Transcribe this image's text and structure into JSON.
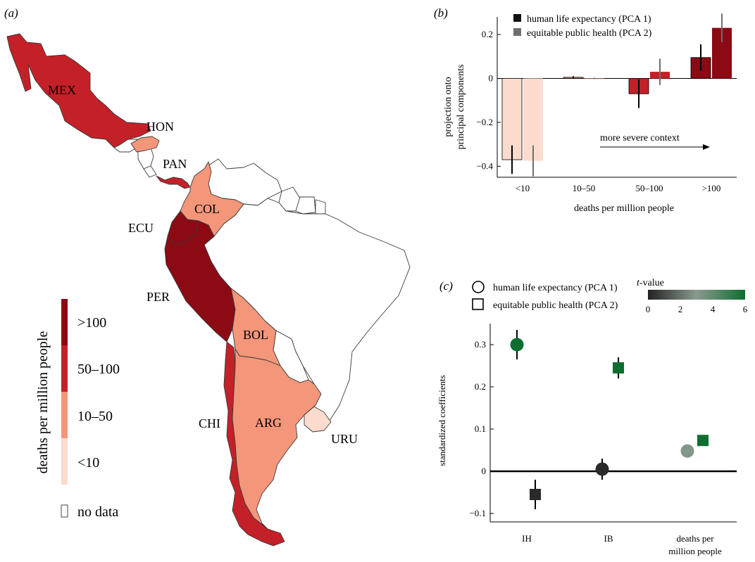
{
  "colors": {
    "gt100": "#8b0a14",
    "c50_100": "#c42028",
    "c10_50": "#f3967a",
    "lt10": "#fadbce",
    "nodata": "#ffffff",
    "tv_low": "#222222",
    "tv_high": "#0e6e32"
  },
  "map": {
    "panel_label": "(a)",
    "countries": [
      {
        "code": "MEX",
        "category": "50–100"
      },
      {
        "code": "HON",
        "category": "10–50"
      },
      {
        "code": "PAN",
        "category": "50–100"
      },
      {
        "code": "COL",
        "category": "10–50"
      },
      {
        "code": "ECU",
        "category": ">100"
      },
      {
        "code": "PER",
        "category": ">100"
      },
      {
        "code": "BOL",
        "category": "10–50"
      },
      {
        "code": "CHI",
        "category": "50–100"
      },
      {
        "code": "ARG",
        "category": "10–50"
      },
      {
        "code": "URU",
        "category": "<10"
      }
    ],
    "legend": {
      "title": "deaths per million people",
      "categories": [
        ">100",
        "50–100",
        "10–50",
        "<10"
      ],
      "nodata": "no data"
    }
  },
  "chart_data": [
    {
      "panel_label": "(b)",
      "type": "bar",
      "categories": [
        "<10",
        "10–50",
        "50–100",
        ">100"
      ],
      "series": [
        {
          "name": "human life expectancy (PCA 1)",
          "values": [
            -0.37,
            0.005,
            -0.07,
            0.095
          ],
          "err": [
            0.065,
            0.005,
            0.065,
            0.06
          ]
        },
        {
          "name": "equitable public health (PCA 2)",
          "values": [
            -0.375,
            0.0,
            0.03,
            0.23
          ],
          "err": [
            0.07,
            0.003,
            0.06,
            0.065
          ]
        }
      ],
      "ylim": [
        -0.45,
        0.28
      ],
      "yticks": [
        -0.4,
        -0.2,
        0,
        0.2
      ],
      "ytick_labels": [
        "−0.4",
        "−0.2",
        "0",
        "0.2"
      ],
      "xlabel": "deaths per million people",
      "ylabel": [
        "projection onto",
        "principal components"
      ],
      "annotation": "more severe context"
    },
    {
      "panel_label": "(c)",
      "type": "scatter",
      "categories": [
        "IH",
        "IB",
        "deaths per million people"
      ],
      "category_labels": [
        [
          "IH"
        ],
        [
          "IB"
        ],
        [
          "deaths per",
          "million people"
        ]
      ],
      "series": [
        {
          "name": "human life expectancy (PCA 1)",
          "marker": "circle",
          "values": [
            0.3,
            0.005,
            0.048
          ],
          "err": [
            0.035,
            0.025,
            0.012
          ],
          "tvalue": [
            6.0,
            0.2,
            3.2
          ]
        },
        {
          "name": "equitable public health (PCA 2)",
          "marker": "square",
          "values": [
            -0.055,
            0.245,
            0.073
          ],
          "err": [
            0.035,
            0.025,
            0.012
          ],
          "tvalue": [
            0.2,
            6.0,
            6.0
          ]
        }
      ],
      "ylim": [
        -0.12,
        0.35
      ],
      "yticks": [
        -0.1,
        0,
        0.1,
        0.2,
        0.3
      ],
      "ytick_labels": [
        "−0.1",
        "0",
        "0.1",
        "0.2",
        "0.3"
      ],
      "ylabel": "standardized coefficients",
      "colorbar": {
        "title": "t-value",
        "min": 0,
        "max": 6,
        "ticks": [
          0,
          2,
          4,
          6
        ],
        "tick_labels": [
          "0",
          "2",
          "4",
          "6"
        ]
      }
    }
  ]
}
